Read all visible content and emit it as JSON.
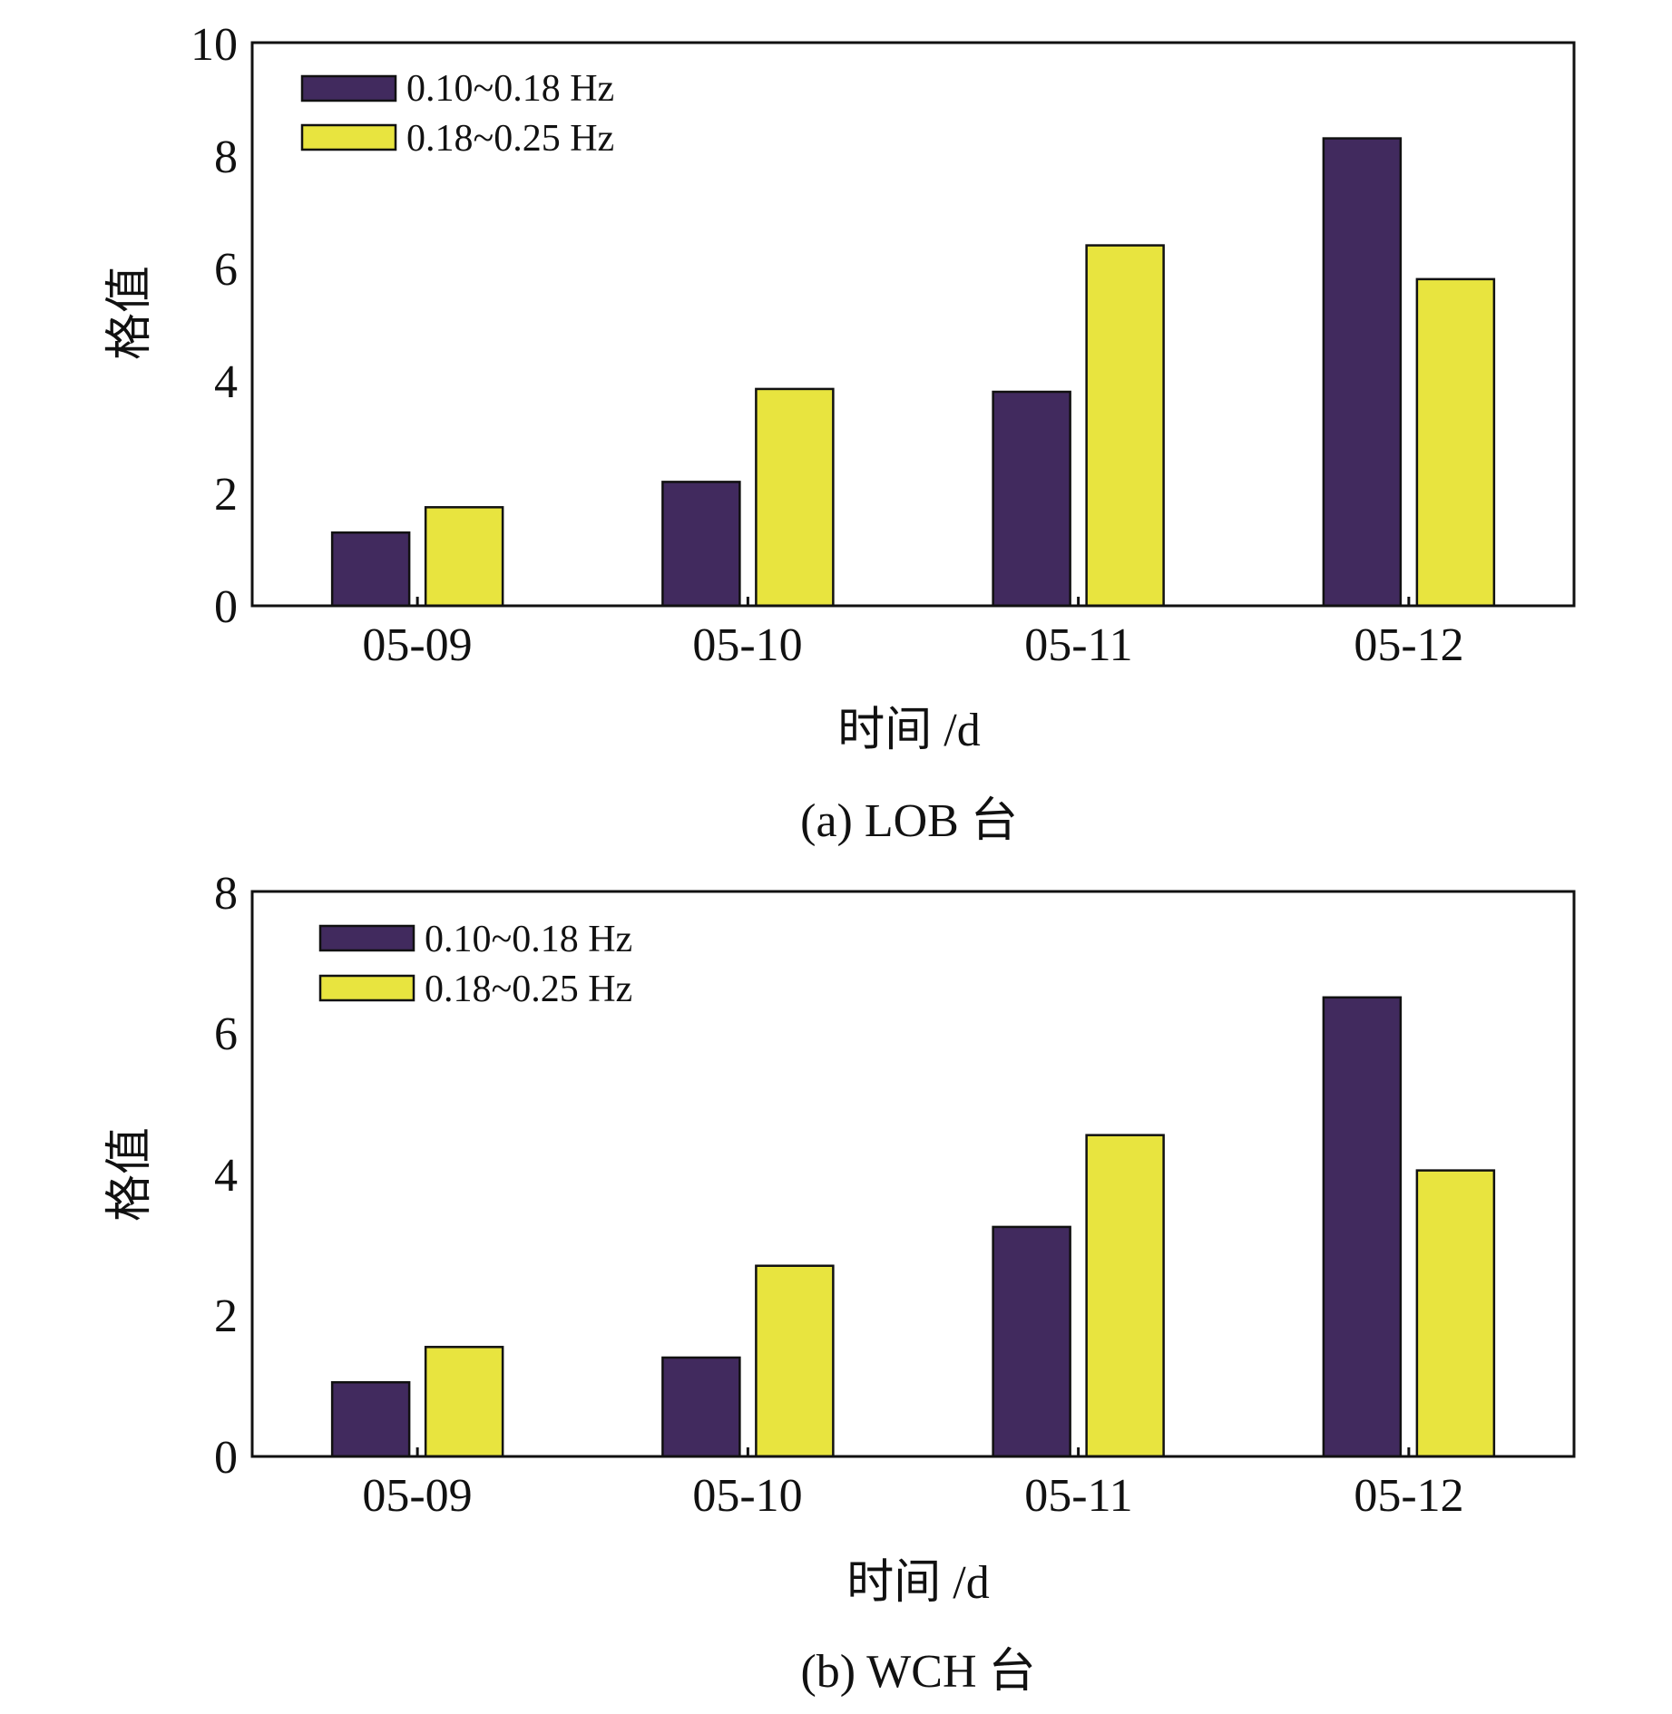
{
  "figure": {
    "colors": {
      "series1": "#412A5E",
      "series2": "#E8E43F",
      "stroke": "#111111"
    }
  },
  "chart_data": [
    {
      "type": "bar",
      "caption": "(a) LOB 台",
      "xlabel": "时间 /d",
      "ylabel": "格值",
      "categories": [
        "05-09",
        "05-10",
        "05-11",
        "05-12"
      ],
      "ylim": [
        0,
        10
      ],
      "yticks": [
        "0",
        "2",
        "4",
        "6",
        "8",
        "10"
      ],
      "legend_position": "top-left",
      "series": [
        {
          "name": "0.10~0.18 Hz",
          "values": [
            1.3,
            2.2,
            3.8,
            8.3
          ]
        },
        {
          "name": "0.18~0.25 Hz",
          "values": [
            1.75,
            3.85,
            6.4,
            5.8
          ]
        }
      ]
    },
    {
      "type": "bar",
      "caption": "(b) WCH 台",
      "xlabel": "时间 /d",
      "ylabel": "格值",
      "categories": [
        "05-09",
        "05-10",
        "05-11",
        "05-12"
      ],
      "ylim": [
        0,
        8
      ],
      "yticks": [
        "0",
        "2",
        "4",
        "6",
        "8"
      ],
      "legend_position": "top-left",
      "series": [
        {
          "name": "0.10~0.18 Hz",
          "values": [
            1.05,
            1.4,
            3.25,
            6.5
          ]
        },
        {
          "name": "0.18~0.25 Hz",
          "values": [
            1.55,
            2.7,
            4.55,
            4.05
          ]
        }
      ]
    }
  ]
}
